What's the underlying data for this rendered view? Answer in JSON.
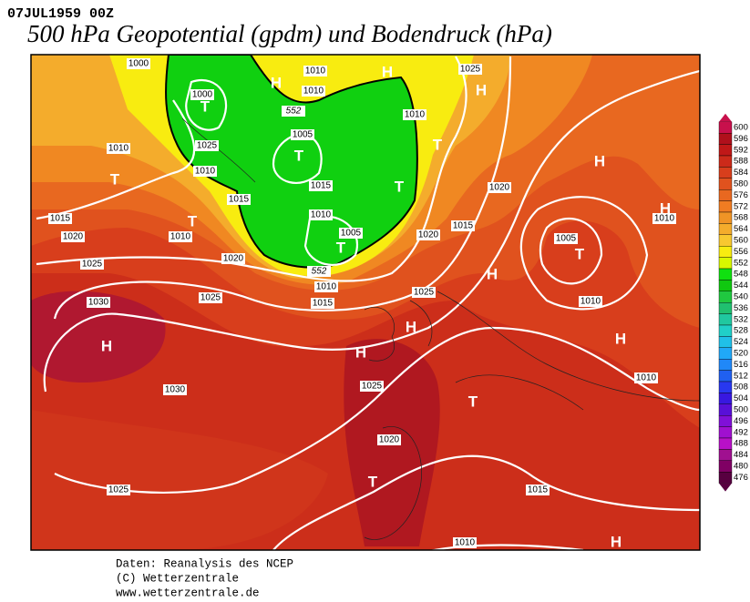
{
  "header": {
    "date": "07JUL1959 00Z",
    "title": "500 hPa Geopotential (gpdm) und Bodendruck (hPa)"
  },
  "map": {
    "labels": [
      "1000",
      "1010",
      "H",
      "1025",
      "H",
      "H",
      "1010",
      "1000",
      "T",
      "552",
      "1010",
      "1005",
      "1025",
      "T",
      "1010",
      "T",
      "H",
      "1010",
      "T",
      "1015",
      "T",
      "1020",
      "1015",
      "H",
      "1010",
      "1015",
      "T",
      "1010",
      "1015",
      "1005",
      "1020",
      "1010",
      "1005",
      "1020",
      "T",
      "T",
      "1020",
      "1025",
      "552",
      "H",
      "1010",
      "1025",
      "1025",
      "1015",
      "1010",
      "1030",
      "H",
      "H",
      "H",
      "H",
      "1010",
      "1025",
      "1030",
      "T",
      "1020",
      "T",
      "1025",
      "1015",
      "1010",
      "H"
    ]
  },
  "colorbar": {
    "levels": [
      600,
      596,
      592,
      588,
      584,
      580,
      576,
      572,
      568,
      564,
      560,
      556,
      552,
      548,
      544,
      540,
      536,
      532,
      528,
      524,
      520,
      516,
      512,
      508,
      504,
      500,
      496,
      492,
      488,
      484,
      480,
      476
    ],
    "colors": [
      "#c8104c",
      "#b0101c",
      "#c01818",
      "#cc2a1a",
      "#d83e1c",
      "#e0521e",
      "#e86820",
      "#f07c22",
      "#f09426",
      "#f4ac2c",
      "#f8c830",
      "#f8ec10",
      "#d8f800",
      "#10e010",
      "#10c810",
      "#20c840",
      "#20c070",
      "#20c8a0",
      "#20d0c8",
      "#20c0e8",
      "#20a8f8",
      "#2088f8",
      "#2060f0",
      "#2838f0",
      "#3818e0",
      "#5810d8",
      "#8010d8",
      "#a010d0",
      "#b810c8",
      "#a01090",
      "#800064",
      "#580040"
    ]
  },
  "footer": {
    "lines": [
      "Daten: Reanalysis des NCEP",
      "(C) Wetterzentrale",
      "www.wetterzentrale.de"
    ]
  }
}
